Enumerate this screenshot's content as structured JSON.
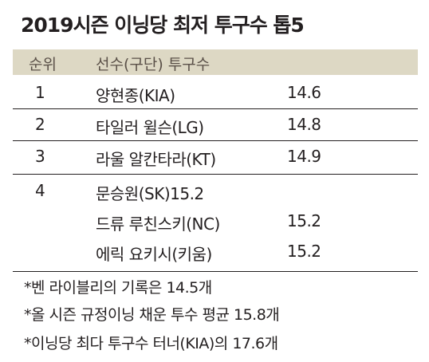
{
  "title": "2019시즌 이닝당 최저 투구수 톱5",
  "table": {
    "headers": {
      "rank": "순위",
      "player": "선수(구단) 투구수"
    },
    "rows": [
      {
        "rank": "1",
        "player": "양현종(KIA)",
        "pitches": "14.6"
      },
      {
        "rank": "2",
        "player": "타일러 윌슨(LG)",
        "pitches": "14.8"
      },
      {
        "rank": "3",
        "player": "라울 알칸타라(KT)",
        "pitches": "14.9"
      },
      {
        "rank": "4",
        "player": "문승원(SK)15.2",
        "pitches": ""
      },
      {
        "rank": "",
        "player": "드류 루친스키(NC)",
        "pitches": "15.2"
      },
      {
        "rank": "",
        "player": "에릭 요키시(키움)",
        "pitches": "15.2"
      }
    ]
  },
  "notes": [
    "*벤 라이블리의 기록은 14.5개",
    "*올 시즌 규정이닝 채운 투수 평균 15.8개",
    "*이닝당 최다 투구수 터너(KIA)의 17.6개"
  ]
}
